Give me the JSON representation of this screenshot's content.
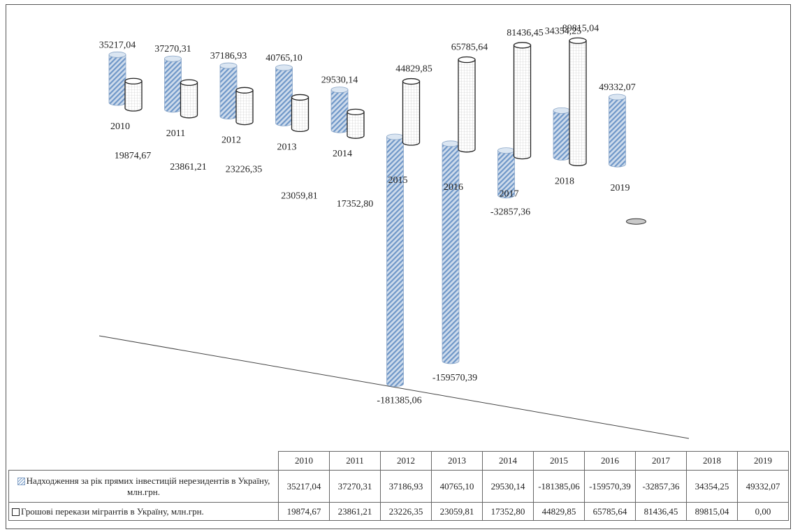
{
  "chart_data": {
    "type": "bar",
    "categories": [
      "2010",
      "2011",
      "2012",
      "2013",
      "2014",
      "2015",
      "2016",
      "2017",
      "2018",
      "2019"
    ],
    "series": [
      {
        "name": "Надходження за рік прямих інвестицій нерезидентів в Україну, млн.грн.",
        "values": [
          35217.04,
          37270.31,
          37186.93,
          40765.1,
          29530.14,
          -181385.06,
          -159570.39,
          -32857.36,
          34354.25,
          49332.07
        ]
      },
      {
        "name": "Грошові перекази мігрантів в Україну, млн.грн.",
        "values": [
          19874.67,
          23861.21,
          23226.35,
          23059.81,
          17352.8,
          44829.85,
          65785.64,
          81436.45,
          89815.04,
          0.0
        ]
      }
    ],
    "value_labels": {
      "series1": [
        "35217,04",
        "37270,31",
        "37186,93",
        "40765,10",
        "29530,14",
        "-181385,06",
        "-159570,39",
        "-32857,36",
        "34354,25",
        "49332,07"
      ],
      "series2": [
        "19874,67",
        "23861,21",
        "23226,35",
        "23059,81",
        "17352,80",
        "44829,85",
        "65785,64",
        "81436,45",
        "89815,04",
        "0,00"
      ]
    },
    "style": "3d-cylinder",
    "colors": {
      "series1": "#6f97c8",
      "series2": "#ffffff"
    },
    "title": "",
    "xlabel": "",
    "ylabel": ""
  }
}
